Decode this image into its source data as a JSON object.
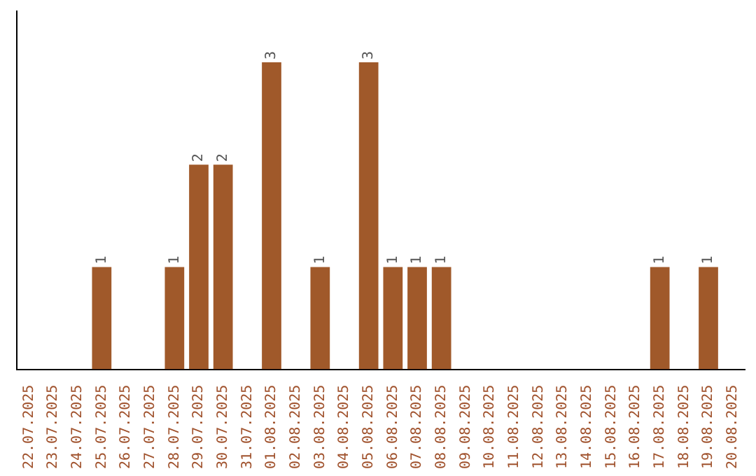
{
  "chart_data": {
    "type": "bar",
    "categories": [
      "22.07.2025",
      "23.07.2025",
      "24.07.2025",
      "25.07.2025",
      "26.07.2025",
      "27.07.2025",
      "28.07.2025",
      "29.07.2025",
      "30.07.2025",
      "31.07.2025",
      "01.08.2025",
      "02.08.2025",
      "03.08.2025",
      "04.08.2025",
      "05.08.2025",
      "06.08.2025",
      "07.08.2025",
      "08.08.2025",
      "09.08.2025",
      "10.08.2025",
      "11.08.2025",
      "12.08.2025",
      "13.08.2025",
      "14.08.2025",
      "15.08.2025",
      "16.08.2025",
      "17.08.2025",
      "18.08.2025",
      "19.08.2025",
      "20.08.2025"
    ],
    "values": [
      0,
      0,
      0,
      1,
      0,
      0,
      1,
      2,
      2,
      0,
      3,
      0,
      1,
      0,
      3,
      1,
      1,
      1,
      0,
      0,
      0,
      0,
      0,
      0,
      0,
      0,
      1,
      0,
      1,
      0
    ],
    "value_labels": [
      null,
      null,
      null,
      "1",
      null,
      null,
      "1",
      "2",
      "2",
      null,
      "3",
      null,
      "1",
      null,
      "3",
      "1",
      "1",
      "1",
      null,
      null,
      null,
      null,
      null,
      null,
      null,
      null,
      "1",
      null,
      "1",
      null
    ],
    "color": "#a0592a",
    "grid": false,
    "legend": false,
    "tick_labels": "x"
  }
}
